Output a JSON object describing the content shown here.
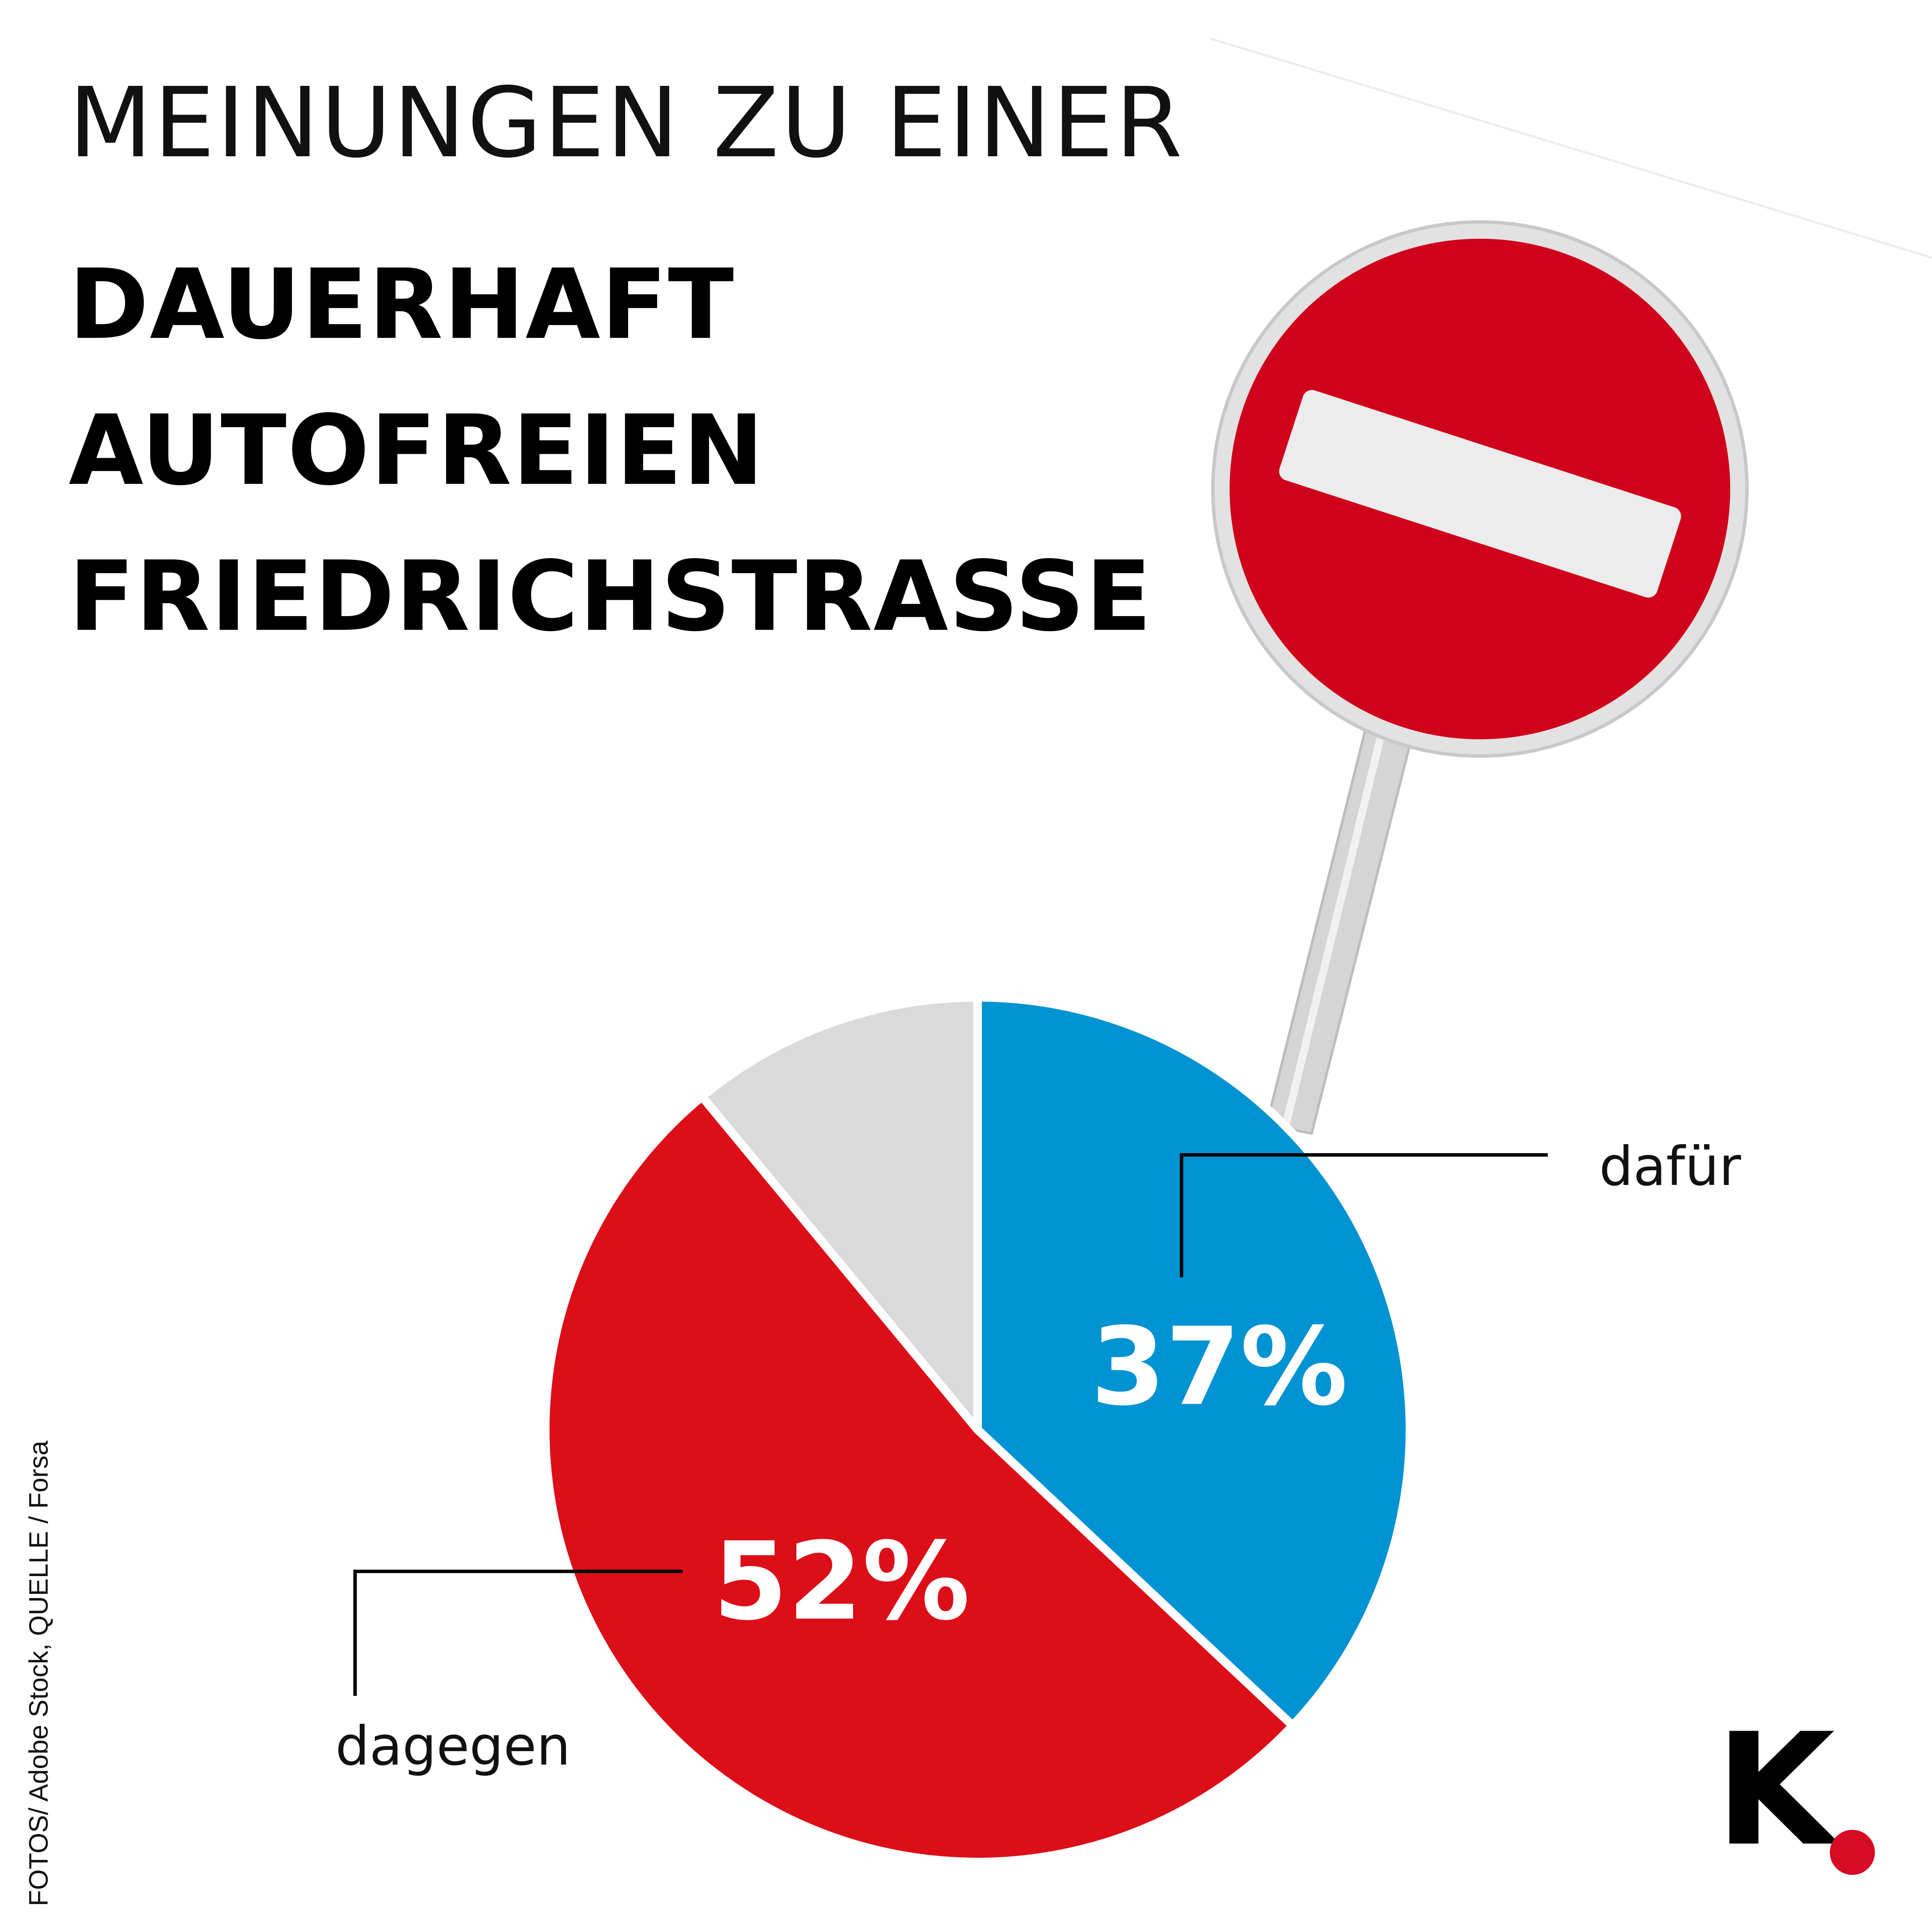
{
  "title": {
    "line1": "MEINUNGEN ZU EINER",
    "line2": "DAUERHAFT",
    "line3": "AUTOFREIEN",
    "line4": "FRIEDRICHSTRASSE"
  },
  "chart_data": {
    "type": "pie",
    "start_angle_deg": 0,
    "direction": "clockwise",
    "slices": [
      {
        "label": "dafür",
        "value": 37,
        "value_label": "37%",
        "color": "#0093d3"
      },
      {
        "label": "dagegen",
        "value": 52,
        "value_label": "52%",
        "color": "#dc0e18"
      },
      {
        "label": "",
        "value": 11,
        "value_label": "",
        "color": "#dadada"
      }
    ]
  },
  "source": "FOTOS/ Adobe Stock, QUELLE / Forsa",
  "logo": {
    "letter": "K",
    "dot_color": "#d50c22"
  },
  "sign": {
    "disk_color": "#d0021b",
    "bar_color": "#ececec",
    "rim_color": "#e2e2e2"
  }
}
